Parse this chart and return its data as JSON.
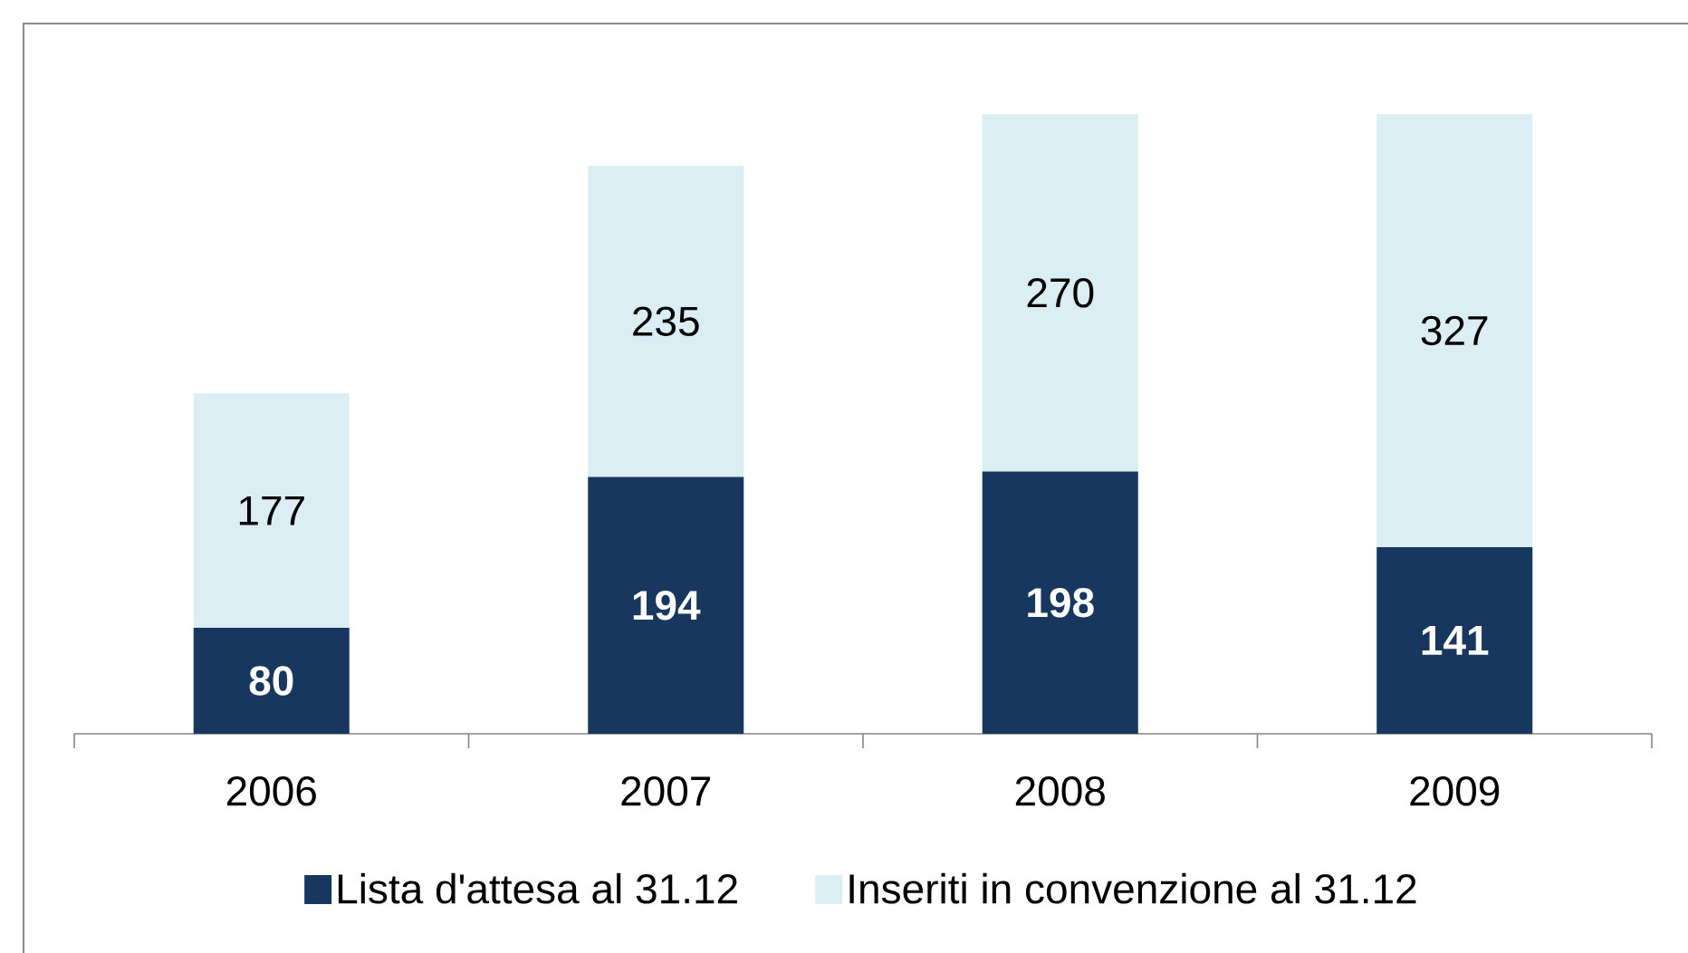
{
  "chart_data": {
    "type": "bar",
    "stacked": true,
    "categories": [
      "2006",
      "2007",
      "2008",
      "2009"
    ],
    "series": [
      {
        "name": "Lista d'attesa al 31.12",
        "color": "#17375e",
        "values": [
          80,
          194,
          198,
          141
        ]
      },
      {
        "name": "Inseriti in convenzione al 31.12",
        "color": "#dbeef4",
        "values": [
          177,
          235,
          270,
          327
        ]
      }
    ],
    "data_labels": true,
    "legend": "bottom"
  }
}
